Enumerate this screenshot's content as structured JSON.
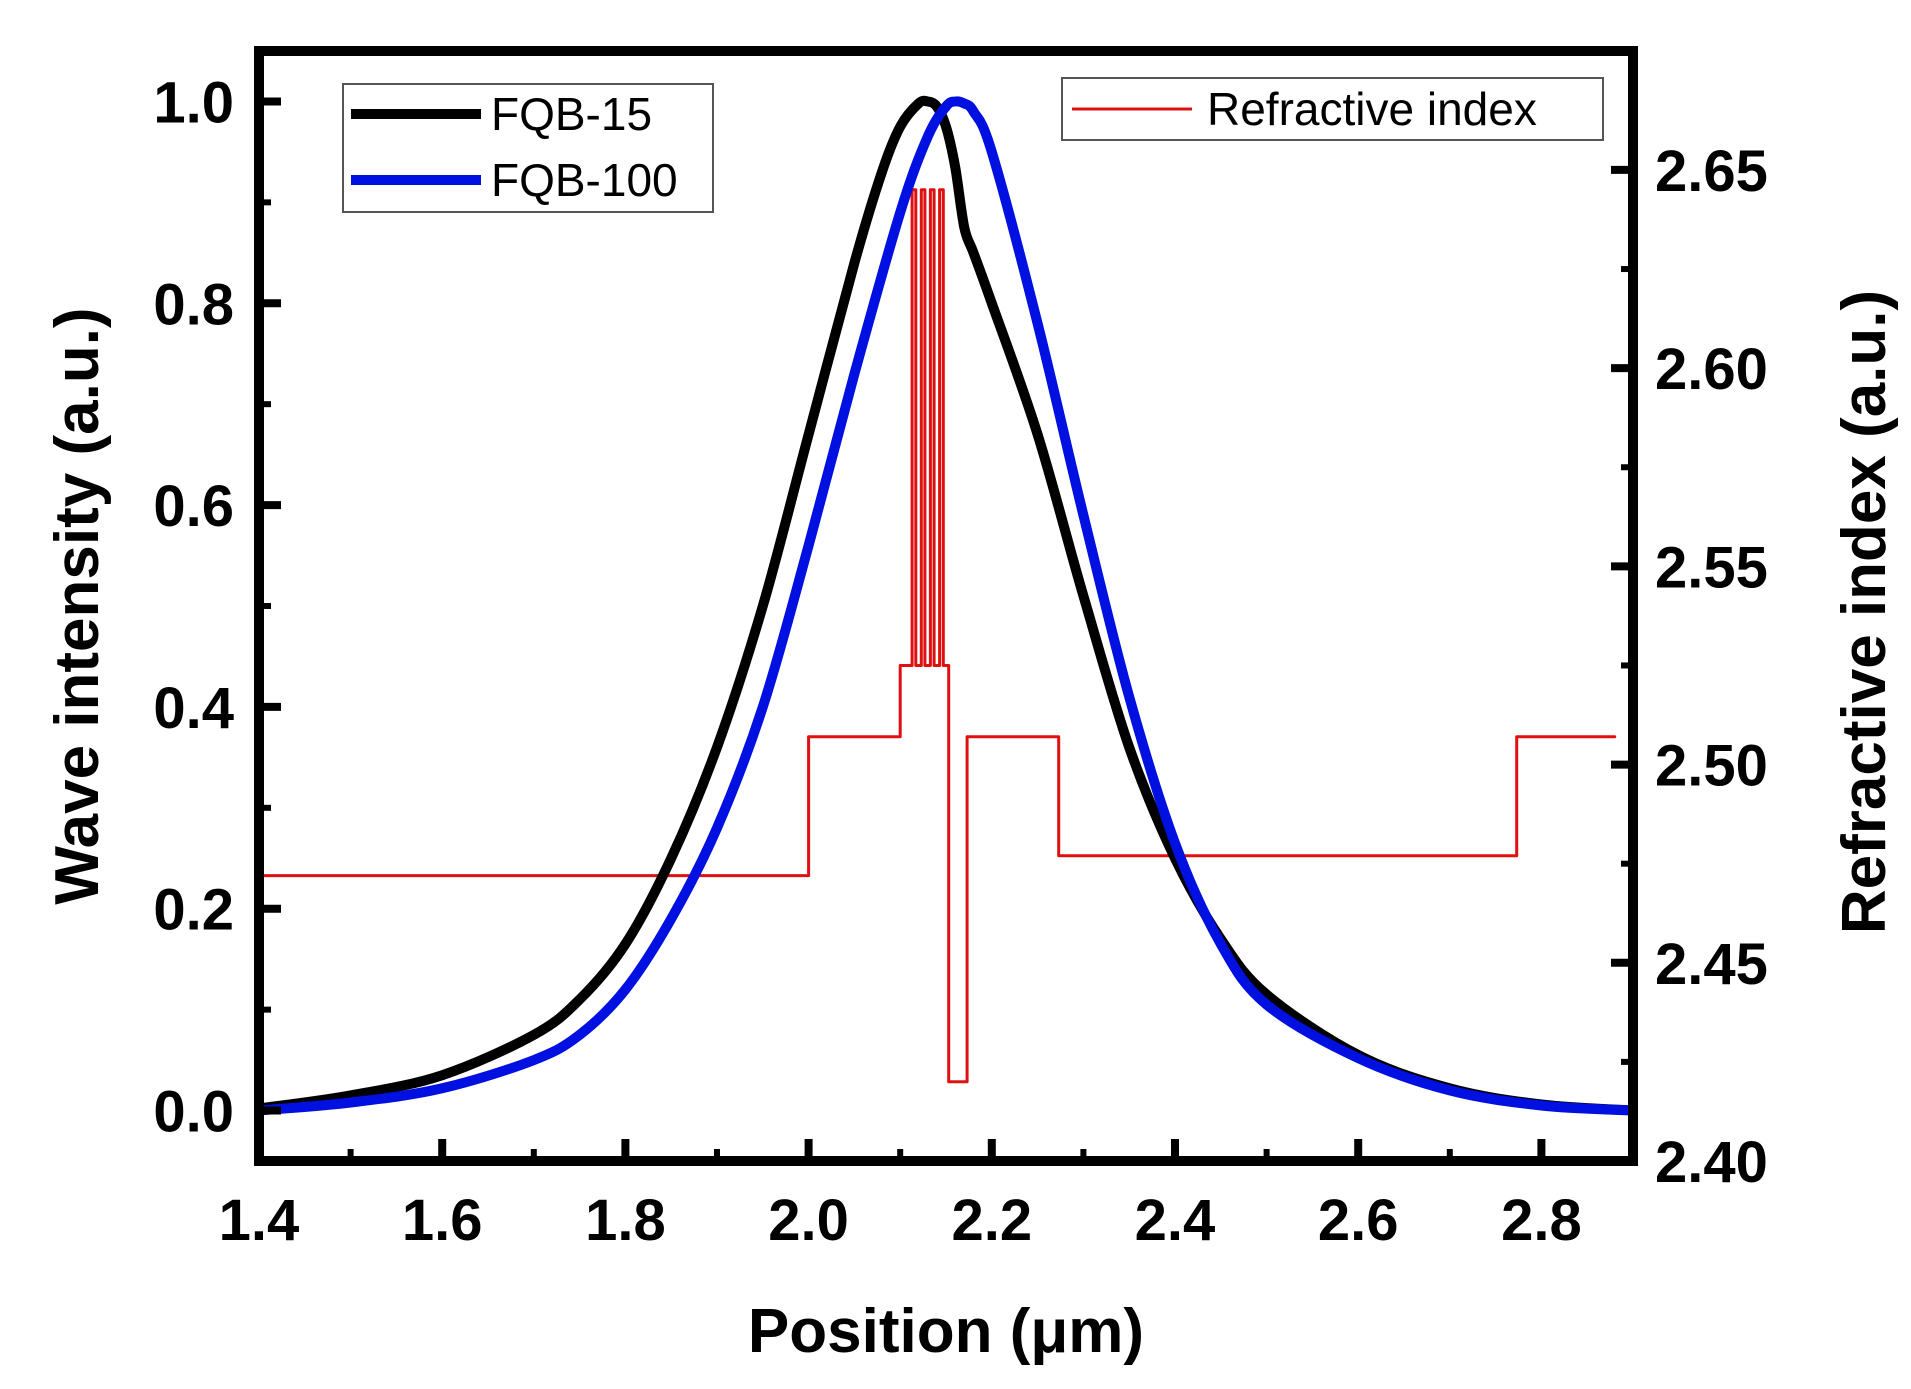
{
  "chart_data": {
    "type": "line",
    "xlabel": "Position (μm)",
    "ylabel": "Wave intensity (a.u.)",
    "y2label": "Refractive index (a.u.)",
    "xlim": [
      1.4,
      2.9
    ],
    "ylim": [
      -0.05,
      1.05
    ],
    "y2lim": [
      2.4,
      2.68
    ],
    "x_ticks": [
      1.4,
      1.6,
      1.8,
      2.0,
      2.2,
      2.4,
      2.6,
      2.8
    ],
    "x_tick_labels": [
      "1.4",
      "1.6",
      "1.8",
      "2.0",
      "2.2",
      "2.4",
      "2.6",
      "2.8"
    ],
    "y_ticks": [
      0.0,
      0.2,
      0.4,
      0.6,
      0.8,
      1.0
    ],
    "y_tick_labels": [
      "0.0",
      "0.2",
      "0.4",
      "0.6",
      "0.8",
      "1.0"
    ],
    "y2_ticks": [
      2.4,
      2.45,
      2.5,
      2.55,
      2.6,
      2.65
    ],
    "y2_tick_labels": [
      "2.40",
      "2.45",
      "2.50",
      "2.55",
      "2.60",
      "2.65"
    ],
    "legend_left": {
      "position": "top-left",
      "entries": [
        "FQB-15",
        "FQB-100"
      ]
    },
    "legend_right": {
      "position": "top-right",
      "entries": [
        "Refractive index"
      ]
    },
    "series": [
      {
        "name": "FQB-15",
        "axis": "left",
        "color": "#000000",
        "x": [
          1.4,
          1.5,
          1.6,
          1.7,
          1.75,
          1.8,
          1.85,
          1.9,
          1.95,
          2.0,
          2.05,
          2.08,
          2.1,
          2.12,
          2.13,
          2.14,
          2.15,
          2.16,
          2.17,
          2.18,
          2.2,
          2.25,
          2.3,
          2.35,
          2.4,
          2.45,
          2.5,
          2.6,
          2.7,
          2.8,
          2.9
        ],
        "y": [
          0.002,
          0.015,
          0.035,
          0.075,
          0.11,
          0.165,
          0.25,
          0.36,
          0.5,
          0.67,
          0.84,
          0.93,
          0.975,
          0.998,
          1.0,
          0.995,
          0.975,
          0.935,
          0.875,
          0.85,
          0.8,
          0.67,
          0.51,
          0.36,
          0.25,
          0.17,
          0.115,
          0.055,
          0.022,
          0.006,
          0.0
        ]
      },
      {
        "name": "FQB-100",
        "axis": "left",
        "color": "#0010e0",
        "x": [
          1.4,
          1.5,
          1.6,
          1.7,
          1.75,
          1.8,
          1.85,
          1.9,
          1.95,
          2.0,
          2.05,
          2.1,
          2.13,
          2.15,
          2.16,
          2.17,
          2.18,
          2.2,
          2.25,
          2.3,
          2.35,
          2.4,
          2.45,
          2.5,
          2.6,
          2.7,
          2.8,
          2.9
        ],
        "y": [
          0.0,
          0.008,
          0.022,
          0.05,
          0.075,
          0.12,
          0.19,
          0.28,
          0.4,
          0.56,
          0.73,
          0.89,
          0.965,
          0.995,
          1.0,
          0.998,
          0.99,
          0.95,
          0.78,
          0.59,
          0.41,
          0.265,
          0.165,
          0.105,
          0.052,
          0.02,
          0.005,
          0.0
        ]
      },
      {
        "name": "Refractive index",
        "axis": "right",
        "color": "#e01010",
        "step": true,
        "x": [
          1.4,
          2.0,
          2.0,
          2.1,
          2.1,
          2.113,
          2.113,
          2.117,
          2.117,
          2.123,
          2.123,
          2.127,
          2.127,
          2.133,
          2.133,
          2.137,
          2.137,
          2.143,
          2.143,
          2.147,
          2.147,
          2.153,
          2.153,
          2.153,
          2.153,
          2.173,
          2.173,
          2.273,
          2.273,
          2.773,
          2.773,
          2.88
        ],
        "y": [
          2.472,
          2.472,
          2.507,
          2.507,
          2.525,
          2.525,
          2.645,
          2.645,
          2.525,
          2.525,
          2.645,
          2.645,
          2.525,
          2.525,
          2.645,
          2.645,
          2.525,
          2.525,
          2.645,
          2.645,
          2.525,
          2.525,
          2.525,
          2.42,
          2.42,
          2.42,
          2.507,
          2.507,
          2.477,
          2.477,
          2.507,
          2.507
        ]
      }
    ]
  }
}
